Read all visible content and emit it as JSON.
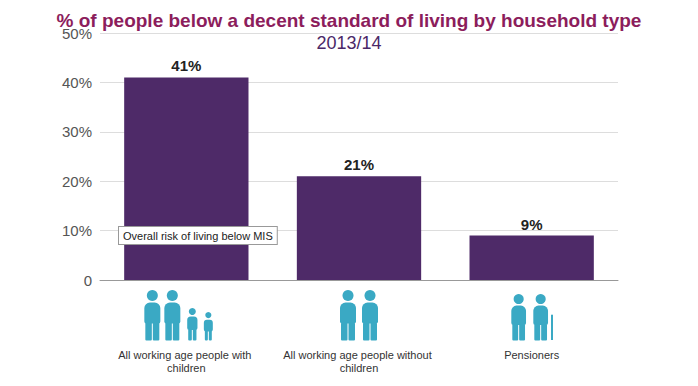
{
  "chart_data": {
    "type": "bar",
    "title": "% of people below a decent standard of living by household type",
    "subtitle": "2013/14",
    "categories": [
      "All working age people with children",
      "All working age people without children",
      "Pensioners"
    ],
    "values": [
      41,
      21,
      9
    ],
    "value_labels": [
      "41%",
      "21%",
      "9%"
    ],
    "color": "#4e2a68",
    "ylim": [
      0,
      50
    ],
    "yticks": [
      0,
      {
        "value": 10,
        "label": "10%"
      },
      {
        "value": 20,
        "label": "20%"
      },
      {
        "value": 30,
        "label": "30%"
      },
      {
        "value": 40,
        "label": "40%"
      },
      {
        "value": 50,
        "label": "50%"
      }
    ],
    "grid": true,
    "data_labels": true,
    "annotation": "Overall risk of living below MIS"
  }
}
